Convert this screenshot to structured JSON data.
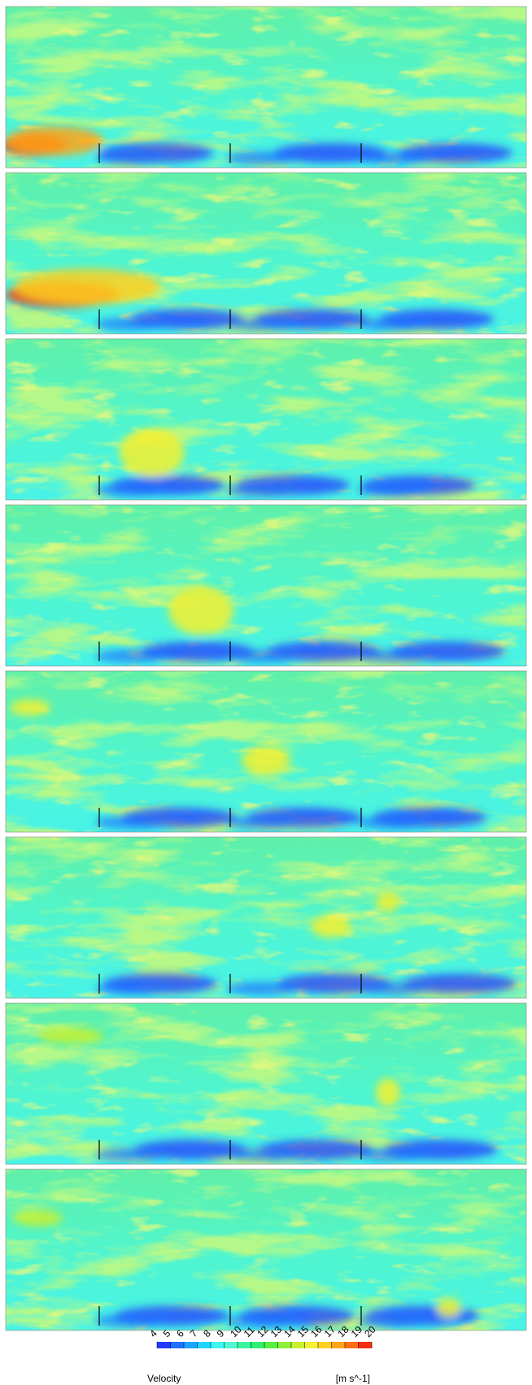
{
  "colorbar": {
    "label": "Velocity",
    "units": "[m s^-1]",
    "ticks": [
      4,
      5,
      6,
      7,
      8,
      9,
      10,
      11,
      12,
      13,
      14,
      15,
      16,
      17,
      18,
      19,
      20
    ],
    "colors": [
      "#2438ff",
      "#1e70ff",
      "#1aa4ff",
      "#22d2ff",
      "#3ff5f0",
      "#4ff7d2",
      "#3af5a0",
      "#2ef070",
      "#55f040",
      "#8ef038",
      "#c8f030",
      "#f5f030",
      "#ffd020",
      "#ffa51a",
      "#ff7014",
      "#f53010"
    ]
  }
}
